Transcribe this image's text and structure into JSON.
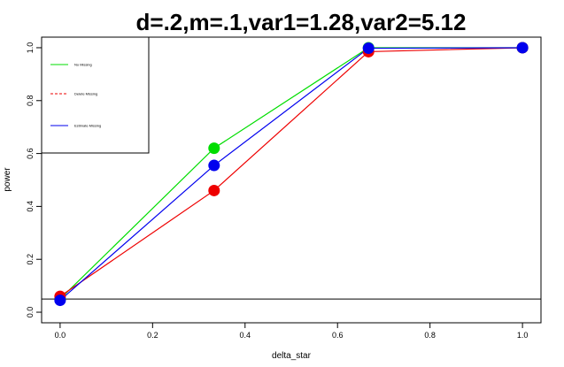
{
  "chart_data": {
    "type": "line",
    "title": "d=.2,m=.1,var1=1.28,var2=5.12",
    "xlabel": "delta_star",
    "ylabel": "power",
    "xlim": [
      -0.04,
      1.04
    ],
    "ylim": [
      -0.04,
      1.04
    ],
    "x_ticks": [
      0.0,
      0.2,
      0.4,
      0.6,
      0.8,
      1.0
    ],
    "y_ticks": [
      0.0,
      0.2,
      0.4,
      0.6,
      0.8,
      1.0
    ],
    "x_tick_labels": [
      "0.0",
      "0.2",
      "0.4",
      "0.6",
      "0.8",
      "1.0"
    ],
    "y_tick_labels": [
      "0.0",
      "0.2",
      "0.4",
      "0.6",
      "0.8",
      "1.0"
    ],
    "reference_line": {
      "y": 0.05,
      "color": "#000000"
    },
    "legend_position": "top-left",
    "x": [
      0.0,
      0.333,
      0.667,
      1.0
    ],
    "series": [
      {
        "name": "No Missing",
        "color": "#00dd00",
        "line_style": "solid",
        "values": [
          0.05,
          0.62,
          1.0,
          1.0
        ]
      },
      {
        "name": "Delete Missing",
        "color": "#ee0000",
        "line_style": "dashed",
        "values": [
          0.06,
          0.46,
          0.985,
          1.0
        ]
      },
      {
        "name": "Estimate Missing",
        "color": "#0000ee",
        "line_style": "solid",
        "values": [
          0.045,
          0.555,
          0.998,
          1.0
        ]
      }
    ]
  }
}
